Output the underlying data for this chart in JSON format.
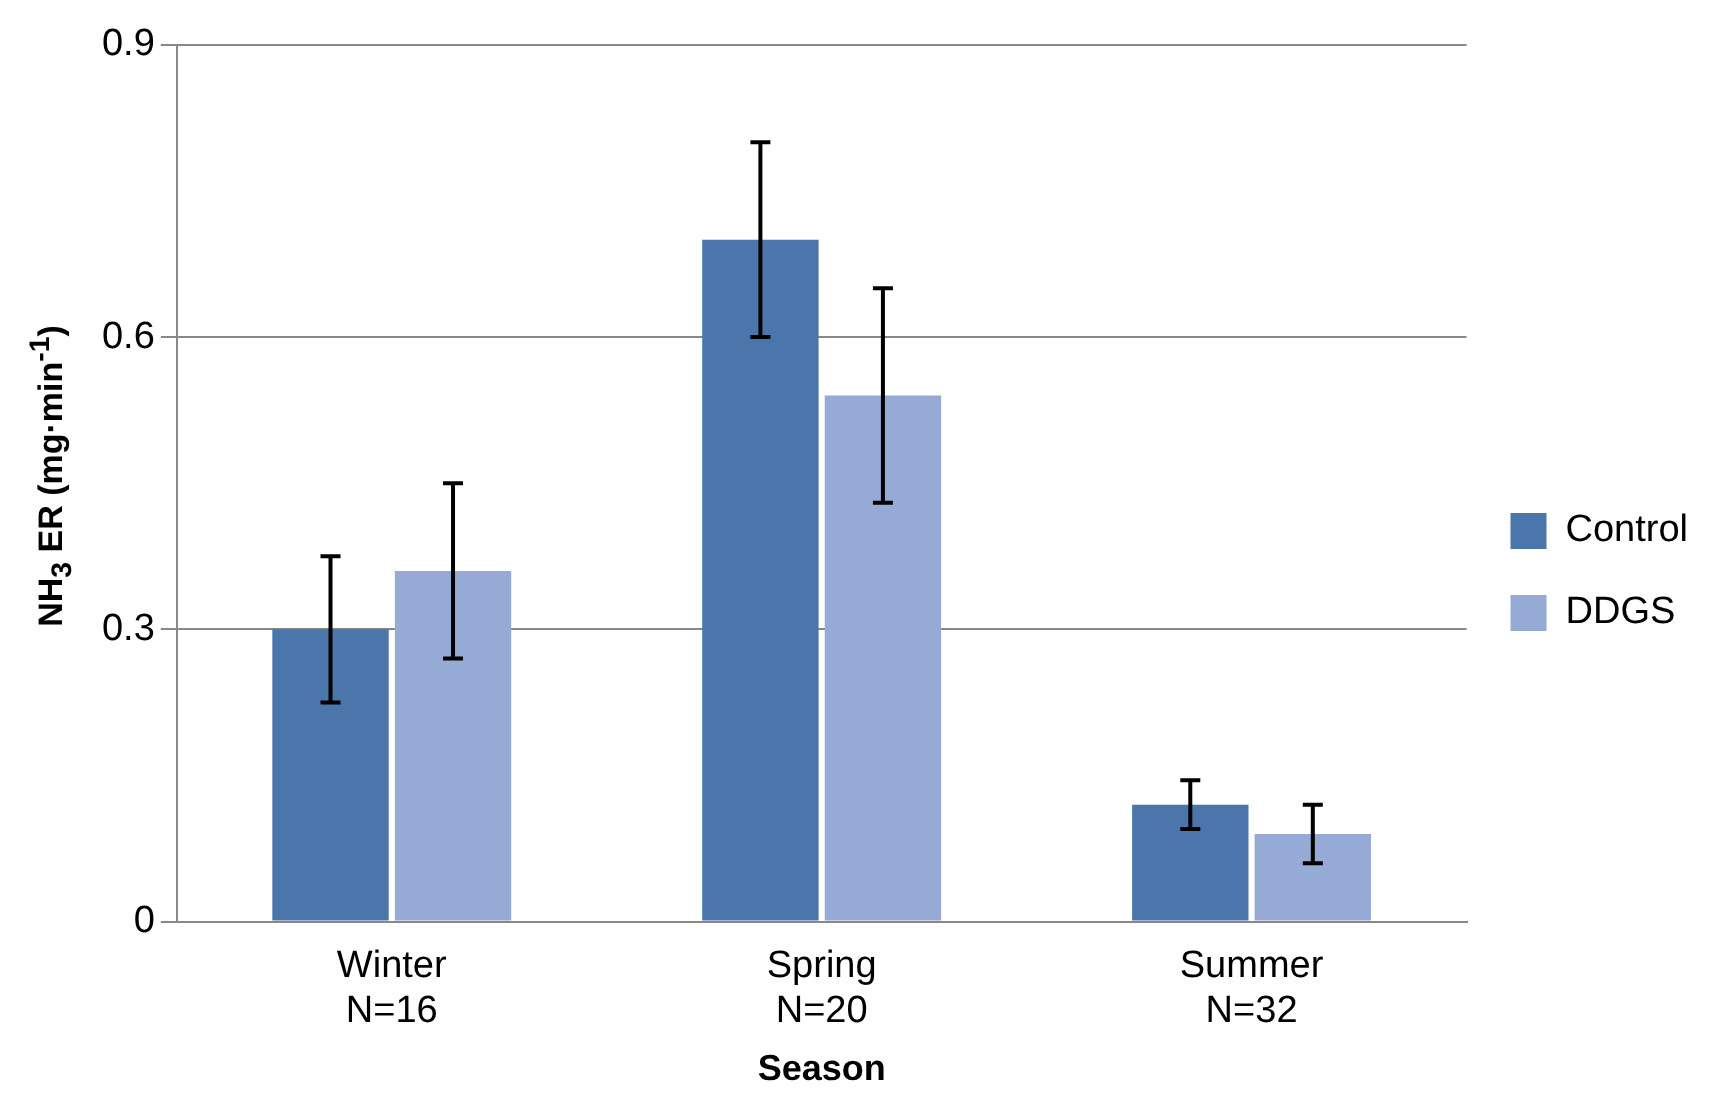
{
  "chart_data": {
    "type": "bar",
    "xlabel": "Season",
    "ylabel": "NH$_{3}$ ER (mg·min$^{-1}$)",
    "categories": [
      "Winter\nN=16",
      "Spring\nN=20",
      "Summer\nN=32"
    ],
    "series": [
      {
        "name": "Control",
        "color": "#4a76ab",
        "values": [
          0.3,
          0.7,
          0.12
        ],
        "errors": [
          0.075,
          0.1,
          0.025
        ]
      },
      {
        "name": "DDGS",
        "color": "#95abd5",
        "values": [
          0.36,
          0.54,
          0.09
        ],
        "errors": [
          0.09,
          0.11,
          0.03
        ]
      }
    ],
    "ylim": [
      0,
      0.9
    ],
    "yticks": [
      {
        "value": 0,
        "label": "0"
      },
      0.3,
      0.6,
      0.9
    ],
    "grid": "y",
    "legend": "right"
  }
}
